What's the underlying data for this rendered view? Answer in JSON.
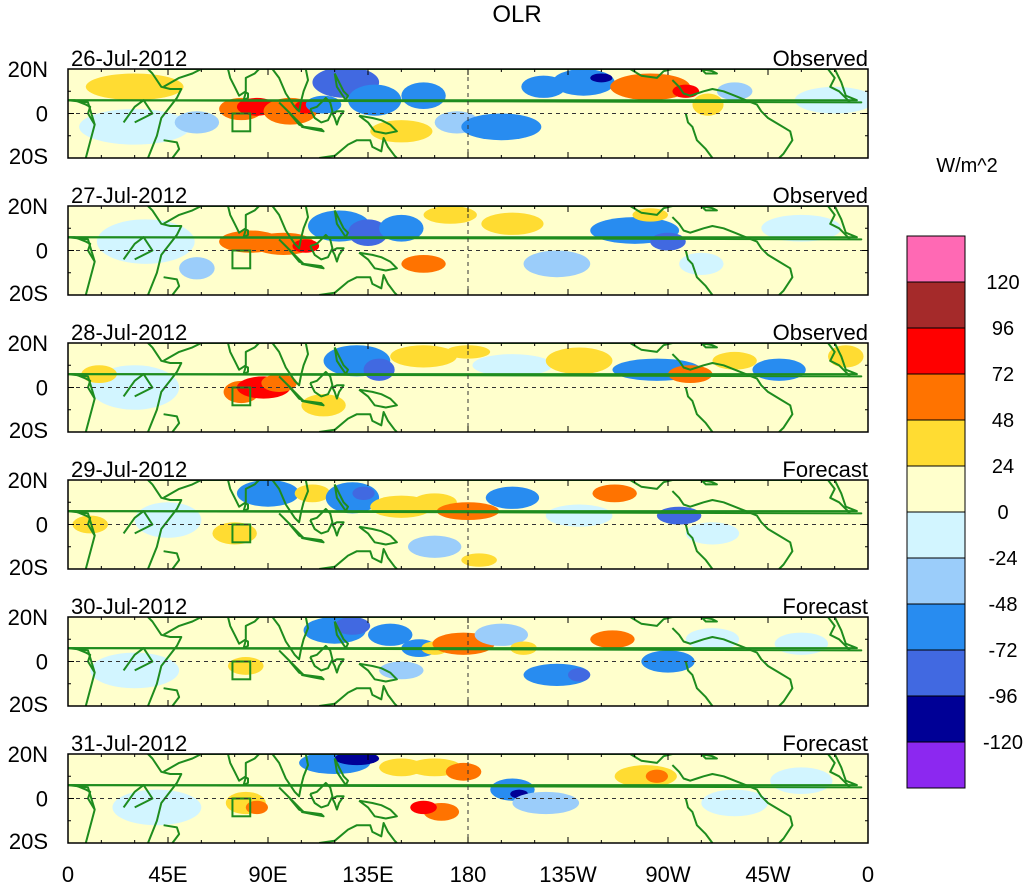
{
  "chart_data": {
    "type": "heatmap",
    "title": "OLR",
    "units_label": "W/m^2",
    "x_ticks": [
      "0",
      "45E",
      "90E",
      "135E",
      "180",
      "135W",
      "90W",
      "45W",
      "0"
    ],
    "x_range_deg": [
      0,
      360
    ],
    "y_ticks": [
      "20N",
      "0",
      "20S"
    ],
    "y_range_deg": [
      -20,
      20
    ],
    "colorbar": {
      "labels": [
        "120",
        "96",
        "72",
        "48",
        "24",
        "0",
        "-24",
        "-48",
        "-72",
        "-96",
        "-120"
      ],
      "colors": [
        "#ff69b4",
        "#a52a2a",
        "#ff0000",
        "#ff7300",
        "#ffdc32",
        "#ffffcc",
        "#d2f5ff",
        "#9bcdfa",
        "#288cf0",
        "#4169e1",
        "#000096",
        "#8c28f0"
      ]
    },
    "panels": [
      {
        "date": "26-Jul-2012",
        "status": "Observed"
      },
      {
        "date": "27-Jul-2012",
        "status": "Observed"
      },
      {
        "date": "28-Jul-2012",
        "status": "Observed"
      },
      {
        "date": "29-Jul-2012",
        "status": "Forecast"
      },
      {
        "date": "30-Jul-2012",
        "status": "Forecast"
      },
      {
        "date": "31-Jul-2012",
        "status": "Forecast"
      }
    ]
  },
  "colors": {
    "coast": "#1e8c1e",
    "frame": "#000000"
  }
}
